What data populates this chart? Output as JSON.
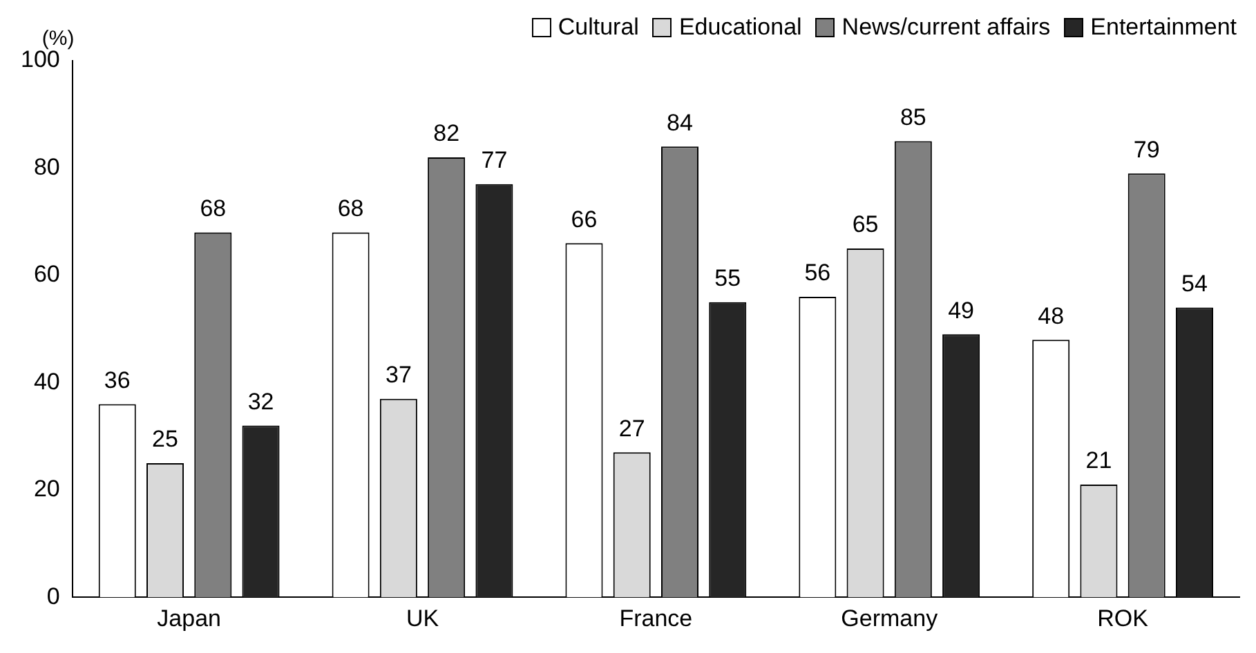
{
  "chart_data": {
    "type": "bar",
    "ylabel": "(%)",
    "categories": [
      "Japan",
      "UK",
      "France",
      "Germany",
      "ROK"
    ],
    "series": [
      {
        "name": "Cultural",
        "color": "#ffffff",
        "values": [
          36,
          68,
          66,
          56,
          48
        ]
      },
      {
        "name": "Educational",
        "color": "#d9d9d9",
        "values": [
          25,
          37,
          27,
          65,
          21
        ]
      },
      {
        "name": "News/current affairs",
        "color": "#808080",
        "values": [
          68,
          82,
          84,
          85,
          79
        ]
      },
      {
        "name": "Entertainment",
        "color": "#262626",
        "values": [
          32,
          77,
          55,
          49,
          54
        ]
      }
    ],
    "ylim": [
      0,
      100
    ],
    "yticks": [
      0,
      20,
      40,
      60,
      80,
      100
    ],
    "grid": false,
    "legend": "top",
    "data_labels": true
  }
}
